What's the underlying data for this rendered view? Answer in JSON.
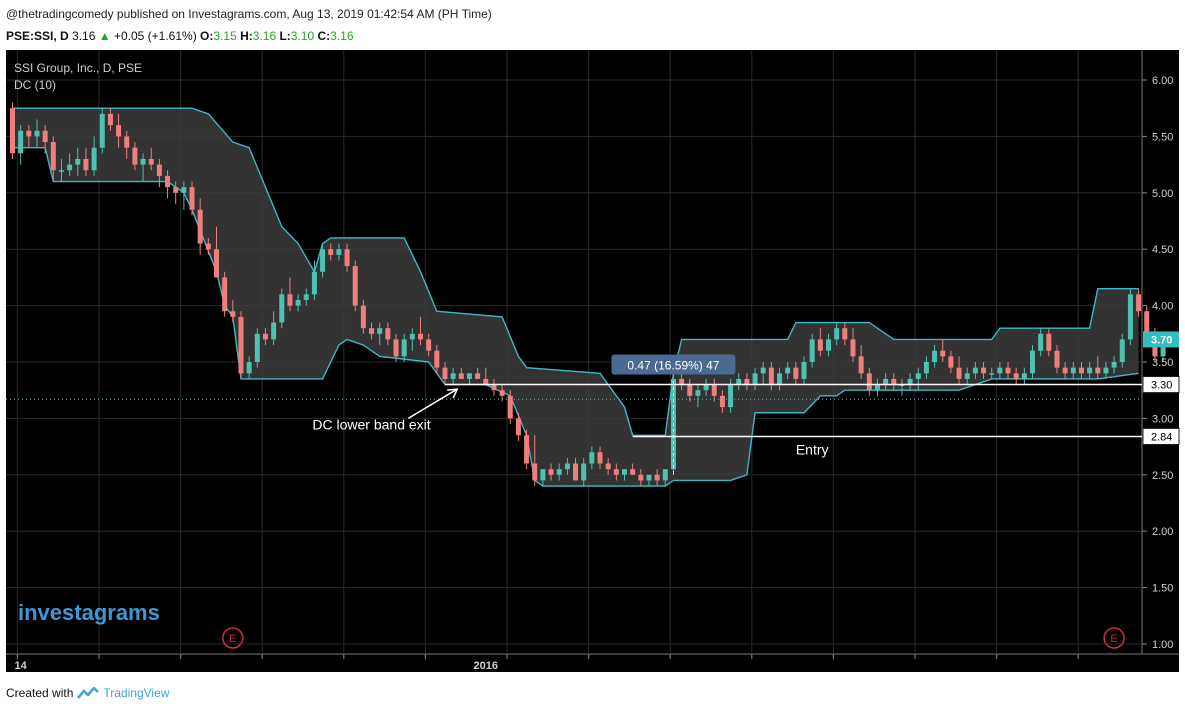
{
  "header": {
    "published": "@thetradingcomedy published on Investagrams.com, Aug 13, 2019 01:42:54 AM (PH Time)",
    "symbol": "PSE:SSI, D",
    "price": "3.16",
    "change": "+0.05 (+1.61%)",
    "o_label": "O:",
    "o_value": "3.15",
    "h_label": "H:",
    "h_value": "3.16",
    "l_label": "L:",
    "l_value": "3.10",
    "c_label": "C:",
    "c_value": "3.16"
  },
  "footer": {
    "created_with": "Created with",
    "brand": "TradingView"
  },
  "colors": {
    "background": "#000000",
    "up": "#4fc1b0",
    "down": "#ef7f7f",
    "band": "#3cb8c6",
    "band_fill": "#3c3c3c",
    "grid": "#2a2a2a",
    "tag": "#33bdbd",
    "measure": "#4a6a8f"
  },
  "chart_data": {
    "type": "candlestick",
    "legend": [
      "SSI Group, Inc., D, PSE",
      "DC (10)"
    ],
    "watermark": "investagrams",
    "y_ticks": [
      "6.00",
      "5.50",
      "5.00",
      "4.50",
      "4.00",
      "3.50",
      "3.00",
      "2.50",
      "2.00",
      "1.50",
      "1.00"
    ],
    "ylim": [
      0.9,
      6.2
    ],
    "x_ticks": [
      {
        "label": "14",
        "index": 1,
        "bold": true
      },
      {
        "label": "2016",
        "index": 58,
        "bold": true
      }
    ],
    "n_bars": 139,
    "candles": [
      [
        5.75,
        5.8,
        5.3,
        5.35
      ],
      [
        5.35,
        5.6,
        5.25,
        5.55
      ],
      [
        5.55,
        5.6,
        5.4,
        5.5
      ],
      [
        5.5,
        5.65,
        5.4,
        5.55
      ],
      [
        5.55,
        5.6,
        5.35,
        5.45
      ],
      [
        5.45,
        5.5,
        5.1,
        5.2
      ],
      [
        5.2,
        5.3,
        5.1,
        5.2
      ],
      [
        5.2,
        5.35,
        5.15,
        5.25
      ],
      [
        5.25,
        5.4,
        5.15,
        5.3
      ],
      [
        5.3,
        5.4,
        5.15,
        5.2
      ],
      [
        5.2,
        5.5,
        5.15,
        5.4
      ],
      [
        5.4,
        5.75,
        5.35,
        5.7
      ],
      [
        5.7,
        5.75,
        5.55,
        5.6
      ],
      [
        5.6,
        5.7,
        5.4,
        5.5
      ],
      [
        5.5,
        5.55,
        5.3,
        5.4
      ],
      [
        5.4,
        5.45,
        5.2,
        5.25
      ],
      [
        5.25,
        5.35,
        5.1,
        5.3
      ],
      [
        5.3,
        5.4,
        5.2,
        5.25
      ],
      [
        5.25,
        5.3,
        5.05,
        5.15
      ],
      [
        5.15,
        5.2,
        4.95,
        5.05
      ],
      [
        5.05,
        5.1,
        4.9,
        5.0
      ],
      [
        5.0,
        5.1,
        4.85,
        5.05
      ],
      [
        5.05,
        5.1,
        4.8,
        4.85
      ],
      [
        4.85,
        4.95,
        4.45,
        4.55
      ],
      [
        4.55,
        4.6,
        4.45,
        4.5
      ],
      [
        4.5,
        4.7,
        4.25,
        4.25
      ],
      [
        4.25,
        4.3,
        3.9,
        3.95
      ],
      [
        3.95,
        4.05,
        3.85,
        3.9
      ],
      [
        3.9,
        3.95,
        3.35,
        3.4
      ],
      [
        3.4,
        3.55,
        3.35,
        3.5
      ],
      [
        3.5,
        3.8,
        3.45,
        3.75
      ],
      [
        3.75,
        3.8,
        3.65,
        3.7
      ],
      [
        3.7,
        3.95,
        3.65,
        3.85
      ],
      [
        3.85,
        4.15,
        3.8,
        4.1
      ],
      [
        4.1,
        4.25,
        3.95,
        4.0
      ],
      [
        4.0,
        4.1,
        3.95,
        4.05
      ],
      [
        4.05,
        4.15,
        4.0,
        4.1
      ],
      [
        4.1,
        4.4,
        4.05,
        4.3
      ],
      [
        4.3,
        4.55,
        4.25,
        4.5
      ],
      [
        4.5,
        4.55,
        4.4,
        4.45
      ],
      [
        4.45,
        4.55,
        4.4,
        4.5
      ],
      [
        4.5,
        4.55,
        4.3,
        4.35
      ],
      [
        4.35,
        4.4,
        3.95,
        4.0
      ],
      [
        4.0,
        4.05,
        3.75,
        3.8
      ],
      [
        3.8,
        3.85,
        3.7,
        3.75
      ],
      [
        3.75,
        3.85,
        3.65,
        3.8
      ],
      [
        3.8,
        3.85,
        3.65,
        3.7
      ],
      [
        3.7,
        3.75,
        3.5,
        3.55
      ],
      [
        3.55,
        3.75,
        3.5,
        3.7
      ],
      [
        3.7,
        3.8,
        3.6,
        3.75
      ],
      [
        3.75,
        3.9,
        3.65,
        3.7
      ],
      [
        3.7,
        3.75,
        3.55,
        3.6
      ],
      [
        3.6,
        3.65,
        3.4,
        3.45
      ],
      [
        3.45,
        3.5,
        3.3,
        3.35
      ],
      [
        3.35,
        3.45,
        3.3,
        3.4
      ],
      [
        3.4,
        3.45,
        3.35,
        3.35
      ],
      [
        3.35,
        3.4,
        3.3,
        3.4
      ],
      [
        3.4,
        3.45,
        3.35,
        3.35
      ],
      [
        3.35,
        3.45,
        3.3,
        3.3
      ],
      [
        3.3,
        3.35,
        3.2,
        3.25
      ],
      [
        3.25,
        3.3,
        3.15,
        3.2
      ],
      [
        3.2,
        3.25,
        2.95,
        3.0
      ],
      [
        3.0,
        3.05,
        2.8,
        2.85
      ],
      [
        2.85,
        2.9,
        2.55,
        2.6
      ],
      [
        2.6,
        2.85,
        2.4,
        2.45
      ],
      [
        2.45,
        2.55,
        2.4,
        2.55
      ],
      [
        2.55,
        2.6,
        2.45,
        2.5
      ],
      [
        2.5,
        2.6,
        2.45,
        2.55
      ],
      [
        2.55,
        2.65,
        2.5,
        2.6
      ],
      [
        2.6,
        2.65,
        2.45,
        2.45
      ],
      [
        2.45,
        2.65,
        2.4,
        2.6
      ],
      [
        2.6,
        2.75,
        2.55,
        2.7
      ],
      [
        2.7,
        2.75,
        2.55,
        2.6
      ],
      [
        2.6,
        2.65,
        2.5,
        2.55
      ],
      [
        2.55,
        2.6,
        2.45,
        2.5
      ],
      [
        2.5,
        2.55,
        2.45,
        2.55
      ],
      [
        2.55,
        2.6,
        2.5,
        2.5
      ],
      [
        2.5,
        2.55,
        2.4,
        2.45
      ],
      [
        2.45,
        2.5,
        2.4,
        2.5
      ],
      [
        2.5,
        2.55,
        2.4,
        2.45
      ],
      [
        2.45,
        2.55,
        2.4,
        2.55
      ],
      [
        2.55,
        3.4,
        2.5,
        3.35
      ],
      [
        3.35,
        3.4,
        3.25,
        3.3
      ],
      [
        3.3,
        3.35,
        3.15,
        3.2
      ],
      [
        3.2,
        3.3,
        3.1,
        3.25
      ],
      [
        3.25,
        3.35,
        3.2,
        3.3
      ],
      [
        3.3,
        3.35,
        3.15,
        3.2
      ],
      [
        3.2,
        3.25,
        3.05,
        3.1
      ],
      [
        3.1,
        3.35,
        3.05,
        3.3
      ],
      [
        3.3,
        3.4,
        3.25,
        3.35
      ],
      [
        3.35,
        3.4,
        3.25,
        3.3
      ],
      [
        3.3,
        3.45,
        3.25,
        3.4
      ],
      [
        3.4,
        3.5,
        3.3,
        3.45
      ],
      [
        3.45,
        3.5,
        3.25,
        3.3
      ],
      [
        3.3,
        3.45,
        3.25,
        3.4
      ],
      [
        3.4,
        3.5,
        3.35,
        3.45
      ],
      [
        3.45,
        3.5,
        3.3,
        3.35
      ],
      [
        3.35,
        3.55,
        3.3,
        3.5
      ],
      [
        3.5,
        3.75,
        3.45,
        3.7
      ],
      [
        3.7,
        3.8,
        3.55,
        3.6
      ],
      [
        3.6,
        3.75,
        3.55,
        3.7
      ],
      [
        3.7,
        3.85,
        3.65,
        3.8
      ],
      [
        3.8,
        3.85,
        3.65,
        3.7
      ],
      [
        3.7,
        3.8,
        3.5,
        3.55
      ],
      [
        3.55,
        3.65,
        3.35,
        3.4
      ],
      [
        3.4,
        3.45,
        3.2,
        3.25
      ],
      [
        3.25,
        3.35,
        3.2,
        3.3
      ],
      [
        3.3,
        3.4,
        3.25,
        3.35
      ],
      [
        3.35,
        3.4,
        3.25,
        3.3
      ],
      [
        3.3,
        3.35,
        3.2,
        3.3
      ],
      [
        3.3,
        3.4,
        3.25,
        3.35
      ],
      [
        3.35,
        3.45,
        3.25,
        3.4
      ],
      [
        3.4,
        3.55,
        3.35,
        3.5
      ],
      [
        3.5,
        3.65,
        3.45,
        3.6
      ],
      [
        3.6,
        3.7,
        3.5,
        3.55
      ],
      [
        3.55,
        3.6,
        3.4,
        3.45
      ],
      [
        3.45,
        3.55,
        3.3,
        3.35
      ],
      [
        3.35,
        3.45,
        3.3,
        3.4
      ],
      [
        3.4,
        3.5,
        3.35,
        3.45
      ],
      [
        3.45,
        3.5,
        3.35,
        3.4
      ],
      [
        3.4,
        3.45,
        3.35,
        3.4
      ],
      [
        3.4,
        3.5,
        3.35,
        3.45
      ],
      [
        3.45,
        3.5,
        3.35,
        3.4
      ],
      [
        3.4,
        3.45,
        3.3,
        3.35
      ],
      [
        3.35,
        3.45,
        3.3,
        3.4
      ],
      [
        3.4,
        3.65,
        3.35,
        3.6
      ],
      [
        3.6,
        3.8,
        3.55,
        3.75
      ],
      [
        3.75,
        3.8,
        3.55,
        3.6
      ],
      [
        3.6,
        3.65,
        3.4,
        3.45
      ],
      [
        3.45,
        3.5,
        3.35,
        3.4
      ],
      [
        3.4,
        3.5,
        3.35,
        3.45
      ],
      [
        3.45,
        3.5,
        3.35,
        3.4
      ],
      [
        3.4,
        3.5,
        3.35,
        3.45
      ],
      [
        3.45,
        3.55,
        3.35,
        3.4
      ],
      [
        3.4,
        3.5,
        3.35,
        3.45
      ],
      [
        3.45,
        3.55,
        3.4,
        3.5
      ],
      [
        3.5,
        3.75,
        3.45,
        3.7
      ],
      [
        3.7,
        4.15,
        3.65,
        4.1
      ],
      [
        4.1,
        4.15,
        3.9,
        3.95
      ],
      [
        3.95,
        4.0,
        3.7,
        3.75
      ],
      [
        3.75,
        3.8,
        3.5,
        3.55
      ],
      [
        3.55,
        3.75,
        3.5,
        3.7
      ]
    ],
    "dc_upper": [
      [
        0,
        5.75
      ],
      [
        22,
        5.75
      ],
      [
        24,
        5.7
      ],
      [
        27,
        5.45
      ],
      [
        29,
        5.4
      ],
      [
        31,
        5.05
      ],
      [
        33,
        4.7
      ],
      [
        35,
        4.55
      ],
      [
        37,
        4.3
      ],
      [
        38,
        4.55
      ],
      [
        39,
        4.6
      ],
      [
        48,
        4.6
      ],
      [
        50,
        4.3
      ],
      [
        52,
        3.95
      ],
      [
        60,
        3.9
      ],
      [
        62,
        3.55
      ],
      [
        63,
        3.45
      ],
      [
        72,
        3.4
      ],
      [
        75,
        3.1
      ],
      [
        76,
        2.85
      ],
      [
        80,
        2.85
      ],
      [
        81,
        3.4
      ],
      [
        82,
        3.7
      ],
      [
        89,
        3.7
      ],
      [
        90,
        3.7
      ],
      [
        95,
        3.7
      ],
      [
        96,
        3.85
      ],
      [
        105,
        3.85
      ],
      [
        108,
        3.7
      ],
      [
        118,
        3.7
      ],
      [
        120,
        3.7
      ],
      [
        121,
        3.8
      ],
      [
        132,
        3.8
      ],
      [
        133,
        4.15
      ],
      [
        138,
        4.15
      ]
    ],
    "dc_lower": [
      [
        0,
        5.4
      ],
      [
        4,
        5.4
      ],
      [
        5,
        5.1
      ],
      [
        19,
        5.1
      ],
      [
        21,
        5.0
      ],
      [
        22,
        4.85
      ],
      [
        25,
        4.3
      ],
      [
        26,
        4.0
      ],
      [
        27,
        3.9
      ],
      [
        28,
        3.35
      ],
      [
        38,
        3.35
      ],
      [
        40,
        3.65
      ],
      [
        41,
        3.7
      ],
      [
        43,
        3.65
      ],
      [
        45,
        3.55
      ],
      [
        51,
        3.5
      ],
      [
        53,
        3.3
      ],
      [
        58,
        3.3
      ],
      [
        61,
        3.2
      ],
      [
        63,
        2.85
      ],
      [
        64,
        2.45
      ],
      [
        65,
        2.4
      ],
      [
        68,
        2.4
      ],
      [
        80,
        2.4
      ],
      [
        81,
        2.45
      ],
      [
        88,
        2.45
      ],
      [
        90,
        2.5
      ],
      [
        91,
        3.05
      ],
      [
        97,
        3.05
      ],
      [
        99,
        3.2
      ],
      [
        101,
        3.2
      ],
      [
        102,
        3.25
      ],
      [
        116,
        3.25
      ],
      [
        118,
        3.3
      ],
      [
        120,
        3.35
      ],
      [
        131,
        3.35
      ],
      [
        133,
        3.35
      ],
      [
        138,
        3.4
      ]
    ],
    "h_lines": [
      {
        "y": 3.3,
        "from": 53,
        "label": "3.30",
        "style": "solid",
        "color": "#ffffff"
      },
      {
        "y": 2.84,
        "from": 76,
        "label": "2.84",
        "style": "solid",
        "color": "#ffffff"
      }
    ],
    "dotted_line": {
      "y": 3.17
    },
    "price_tag": {
      "y": 3.7,
      "label": "3.70"
    },
    "annotations": [
      {
        "text": "DC lower band exit",
        "x": 44,
        "y": 2.9
      },
      {
        "text": "Entry",
        "x": 98,
        "y": 2.68
      }
    ],
    "measure": {
      "text": "0.47 (16.59%) 47",
      "x": 81,
      "y": 3.46
    },
    "earnings_markers": [
      {
        "index": 27,
        "label": "E"
      },
      {
        "index": 135,
        "label": "E"
      }
    ]
  }
}
